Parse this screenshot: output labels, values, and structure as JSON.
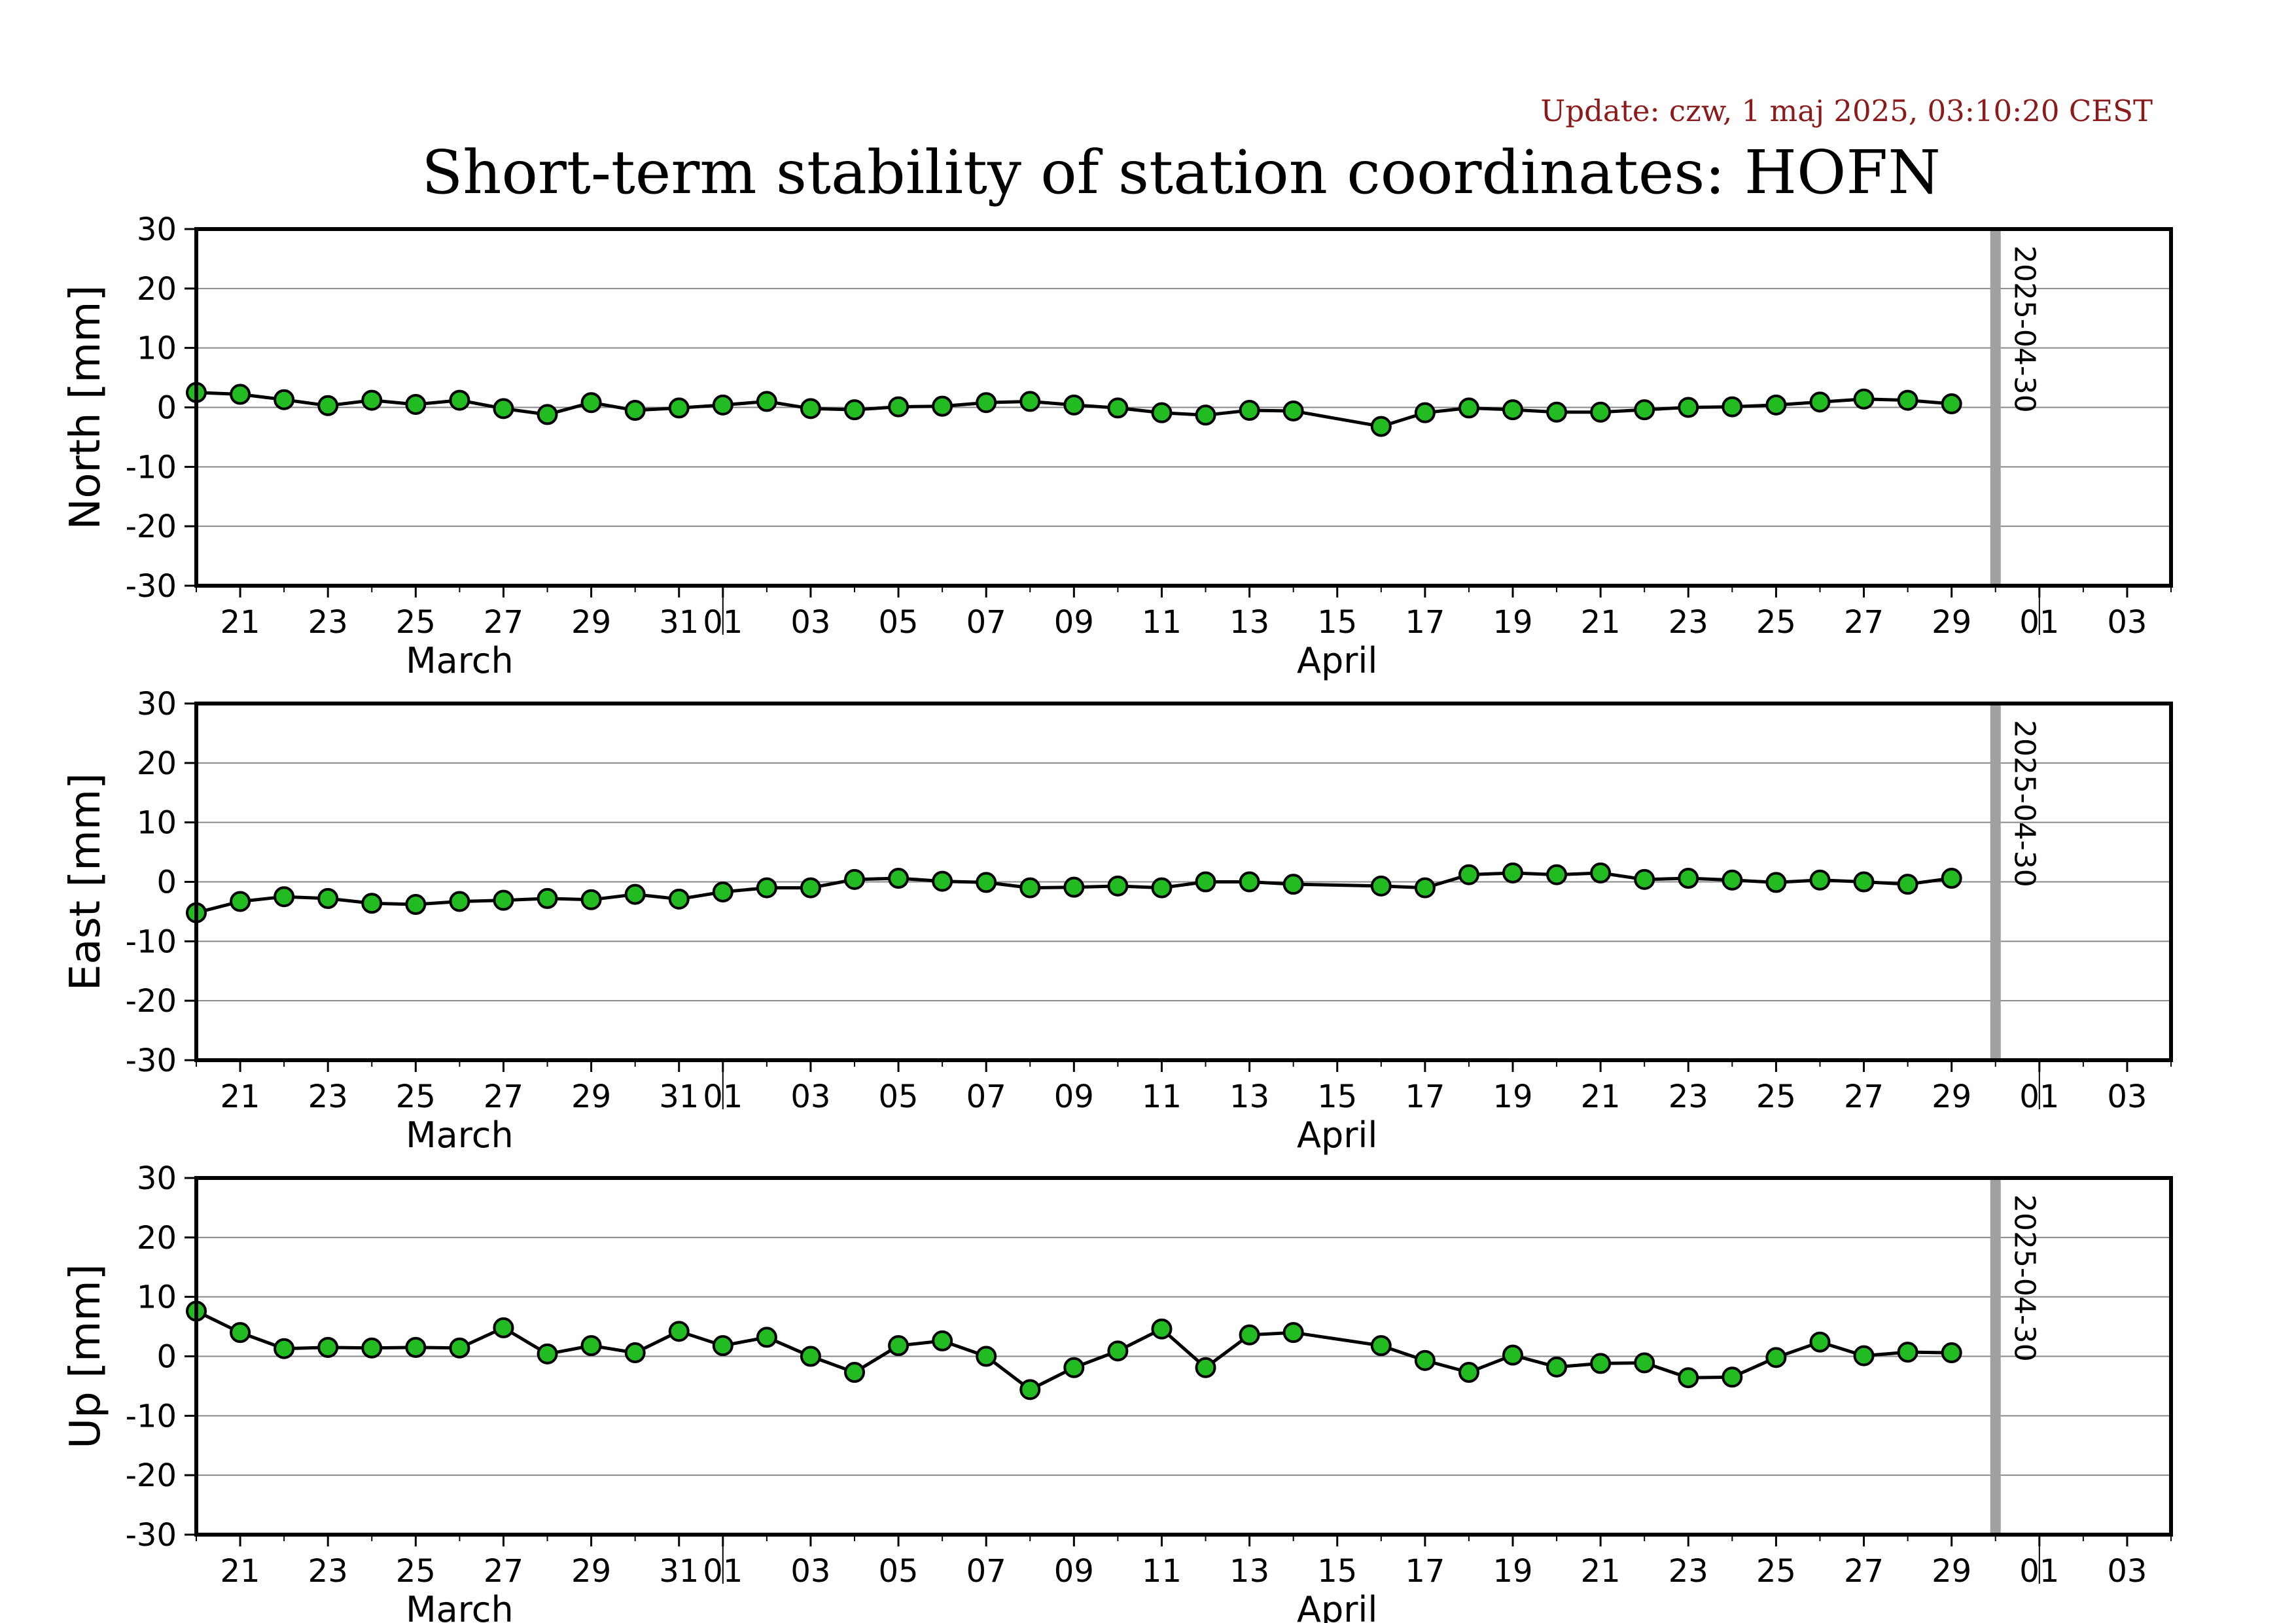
{
  "header": {
    "update_text": "Update: czw, 1 maj 2025, 03:10:20 CEST",
    "title": "Short-term stability of station coordinates: HOFN"
  },
  "colors": {
    "marker_fill": "#22bb22",
    "marker_stroke": "#000000",
    "line": "#000000",
    "grid": "#888888",
    "vertical_marker": "#a0a0a0",
    "update_text": "#8b1a1a"
  },
  "chart_data": [
    {
      "type": "line",
      "ylabel": "North [mm]",
      "ylim": [
        -30,
        30
      ],
      "yticks": [
        30,
        20,
        10,
        0,
        -10,
        -20,
        -30
      ],
      "grid": true,
      "xlim": [
        "2025-03-20",
        "2025-05-04"
      ],
      "x_tick_labels": [
        "21",
        "23",
        "25",
        "27",
        "29",
        "31",
        "01",
        "03",
        "05",
        "07",
        "09",
        "11",
        "13",
        "15",
        "17",
        "19",
        "21",
        "23",
        "25",
        "27",
        "29",
        "01",
        "03"
      ],
      "x_tick_dates": [
        "2025-03-21",
        "2025-03-23",
        "2025-03-25",
        "2025-03-27",
        "2025-03-29",
        "2025-03-31",
        "2025-04-01",
        "2025-04-03",
        "2025-04-05",
        "2025-04-07",
        "2025-04-09",
        "2025-04-11",
        "2025-04-13",
        "2025-04-15",
        "2025-04-17",
        "2025-04-19",
        "2025-04-21",
        "2025-04-23",
        "2025-04-25",
        "2025-04-27",
        "2025-04-29",
        "2025-05-01",
        "2025-05-03"
      ],
      "month_labels": [
        {
          "label": "March",
          "date": "2025-03-26"
        },
        {
          "label": "April",
          "date": "2025-04-15"
        }
      ],
      "month_boundaries": [
        "2025-04-01",
        "2025-05-01"
      ],
      "marker_date": "2025-04-30",
      "marker_label": "2025-04-30",
      "series": [
        {
          "x": [
            "2025-03-20",
            "2025-03-21",
            "2025-03-22",
            "2025-03-23",
            "2025-03-24",
            "2025-03-25",
            "2025-03-26",
            "2025-03-27",
            "2025-03-28",
            "2025-03-29",
            "2025-03-30",
            "2025-03-31",
            "2025-04-01",
            "2025-04-02",
            "2025-04-03",
            "2025-04-04",
            "2025-04-05",
            "2025-04-06",
            "2025-04-07",
            "2025-04-08",
            "2025-04-09",
            "2025-04-10",
            "2025-04-11",
            "2025-04-12",
            "2025-04-13",
            "2025-04-14",
            "2025-04-16",
            "2025-04-17",
            "2025-04-18",
            "2025-04-19",
            "2025-04-20",
            "2025-04-21",
            "2025-04-22",
            "2025-04-23",
            "2025-04-24",
            "2025-04-25",
            "2025-04-26",
            "2025-04-27",
            "2025-04-28",
            "2025-04-29"
          ],
          "y": [
            2.5,
            2.2,
            1.3,
            0.3,
            1.2,
            0.5,
            1.2,
            -0.2,
            -1.2,
            0.8,
            -0.5,
            -0.1,
            0.4,
            1.0,
            -0.2,
            -0.4,
            0.1,
            0.2,
            0.8,
            1.0,
            0.4,
            -0.1,
            -0.9,
            -1.3,
            -0.5,
            -0.6,
            -3.2,
            -0.9,
            -0.1,
            -0.4,
            -0.8,
            -0.8,
            -0.4,
            0.0,
            0.1,
            0.4,
            0.9,
            1.4,
            1.2,
            0.6
          ]
        }
      ]
    },
    {
      "type": "line",
      "ylabel": "East [mm]",
      "ylim": [
        -30,
        30
      ],
      "yticks": [
        30,
        20,
        10,
        0,
        -10,
        -20,
        -30
      ],
      "grid": true,
      "xlim": [
        "2025-03-20",
        "2025-05-04"
      ],
      "x_tick_labels": [
        "21",
        "23",
        "25",
        "27",
        "29",
        "31",
        "01",
        "03",
        "05",
        "07",
        "09",
        "11",
        "13",
        "15",
        "17",
        "19",
        "21",
        "23",
        "25",
        "27",
        "29",
        "01",
        "03"
      ],
      "x_tick_dates": [
        "2025-03-21",
        "2025-03-23",
        "2025-03-25",
        "2025-03-27",
        "2025-03-29",
        "2025-03-31",
        "2025-04-01",
        "2025-04-03",
        "2025-04-05",
        "2025-04-07",
        "2025-04-09",
        "2025-04-11",
        "2025-04-13",
        "2025-04-15",
        "2025-04-17",
        "2025-04-19",
        "2025-04-21",
        "2025-04-23",
        "2025-04-25",
        "2025-04-27",
        "2025-04-29",
        "2025-05-01",
        "2025-05-03"
      ],
      "month_labels": [
        {
          "label": "March",
          "date": "2025-03-26"
        },
        {
          "label": "April",
          "date": "2025-04-15"
        }
      ],
      "month_boundaries": [
        "2025-04-01",
        "2025-05-01"
      ],
      "marker_date": "2025-04-30",
      "marker_label": "2025-04-30",
      "series": [
        {
          "x": [
            "2025-03-20",
            "2025-03-21",
            "2025-03-22",
            "2025-03-23",
            "2025-03-24",
            "2025-03-25",
            "2025-03-26",
            "2025-03-27",
            "2025-03-28",
            "2025-03-29",
            "2025-03-30",
            "2025-03-31",
            "2025-04-01",
            "2025-04-02",
            "2025-04-03",
            "2025-04-04",
            "2025-04-05",
            "2025-04-06",
            "2025-04-07",
            "2025-04-08",
            "2025-04-09",
            "2025-04-10",
            "2025-04-11",
            "2025-04-12",
            "2025-04-13",
            "2025-04-14",
            "2025-04-16",
            "2025-04-17",
            "2025-04-18",
            "2025-04-19",
            "2025-04-20",
            "2025-04-21",
            "2025-04-22",
            "2025-04-23",
            "2025-04-24",
            "2025-04-25",
            "2025-04-26",
            "2025-04-27",
            "2025-04-28",
            "2025-04-29"
          ],
          "y": [
            -5.2,
            -3.3,
            -2.5,
            -2.8,
            -3.6,
            -3.8,
            -3.3,
            -3.1,
            -2.8,
            -3.0,
            -2.1,
            -2.9,
            -1.7,
            -1.0,
            -1.0,
            0.4,
            0.6,
            0.1,
            -0.1,
            -1.0,
            -0.9,
            -0.7,
            -1.0,
            0.0,
            0.0,
            -0.4,
            -0.7,
            -1.0,
            1.2,
            1.5,
            1.2,
            1.5,
            0.4,
            0.6,
            0.3,
            -0.1,
            0.3,
            0.0,
            -0.4,
            0.6
          ]
        }
      ]
    },
    {
      "type": "line",
      "ylabel": "Up [mm]",
      "ylim": [
        -30,
        30
      ],
      "yticks": [
        30,
        20,
        10,
        0,
        -10,
        -20,
        -30
      ],
      "grid": true,
      "xlim": [
        "2025-03-20",
        "2025-05-04"
      ],
      "x_tick_labels": [
        "21",
        "23",
        "25",
        "27",
        "29",
        "31",
        "01",
        "03",
        "05",
        "07",
        "09",
        "11",
        "13",
        "15",
        "17",
        "19",
        "21",
        "23",
        "25",
        "27",
        "29",
        "01",
        "03"
      ],
      "x_tick_dates": [
        "2025-03-21",
        "2025-03-23",
        "2025-03-25",
        "2025-03-27",
        "2025-03-29",
        "2025-03-31",
        "2025-04-01",
        "2025-04-03",
        "2025-04-05",
        "2025-04-07",
        "2025-04-09",
        "2025-04-11",
        "2025-04-13",
        "2025-04-15",
        "2025-04-17",
        "2025-04-19",
        "2025-04-21",
        "2025-04-23",
        "2025-04-25",
        "2025-04-27",
        "2025-04-29",
        "2025-05-01",
        "2025-05-03"
      ],
      "month_labels": [
        {
          "label": "March",
          "date": "2025-03-26"
        },
        {
          "label": "April",
          "date": "2025-04-15"
        }
      ],
      "month_boundaries": [
        "2025-04-01",
        "2025-05-01"
      ],
      "marker_date": "2025-04-30",
      "marker_label": "2025-04-30",
      "series": [
        {
          "x": [
            "2025-03-20",
            "2025-03-21",
            "2025-03-22",
            "2025-03-23",
            "2025-03-24",
            "2025-03-25",
            "2025-03-26",
            "2025-03-27",
            "2025-03-28",
            "2025-03-29",
            "2025-03-30",
            "2025-03-31",
            "2025-04-01",
            "2025-04-02",
            "2025-04-03",
            "2025-04-04",
            "2025-04-05",
            "2025-04-06",
            "2025-04-07",
            "2025-04-08",
            "2025-04-09",
            "2025-04-10",
            "2025-04-11",
            "2025-04-12",
            "2025-04-13",
            "2025-04-14",
            "2025-04-16",
            "2025-04-17",
            "2025-04-18",
            "2025-04-19",
            "2025-04-20",
            "2025-04-21",
            "2025-04-22",
            "2025-04-23",
            "2025-04-24",
            "2025-04-25",
            "2025-04-26",
            "2025-04-27",
            "2025-04-28",
            "2025-04-29"
          ],
          "y": [
            7.6,
            4.0,
            1.3,
            1.5,
            1.4,
            1.5,
            1.4,
            4.8,
            0.4,
            1.8,
            0.6,
            4.2,
            1.8,
            3.2,
            0.0,
            -2.7,
            1.8,
            2.6,
            0.0,
            -5.6,
            -1.9,
            0.9,
            4.6,
            -1.9,
            3.6,
            4.0,
            1.8,
            -0.7,
            -2.7,
            0.2,
            -1.8,
            -1.2,
            -1.1,
            -3.6,
            -3.5,
            -0.2,
            2.4,
            0.1,
            0.7,
            0.6
          ]
        }
      ]
    }
  ]
}
